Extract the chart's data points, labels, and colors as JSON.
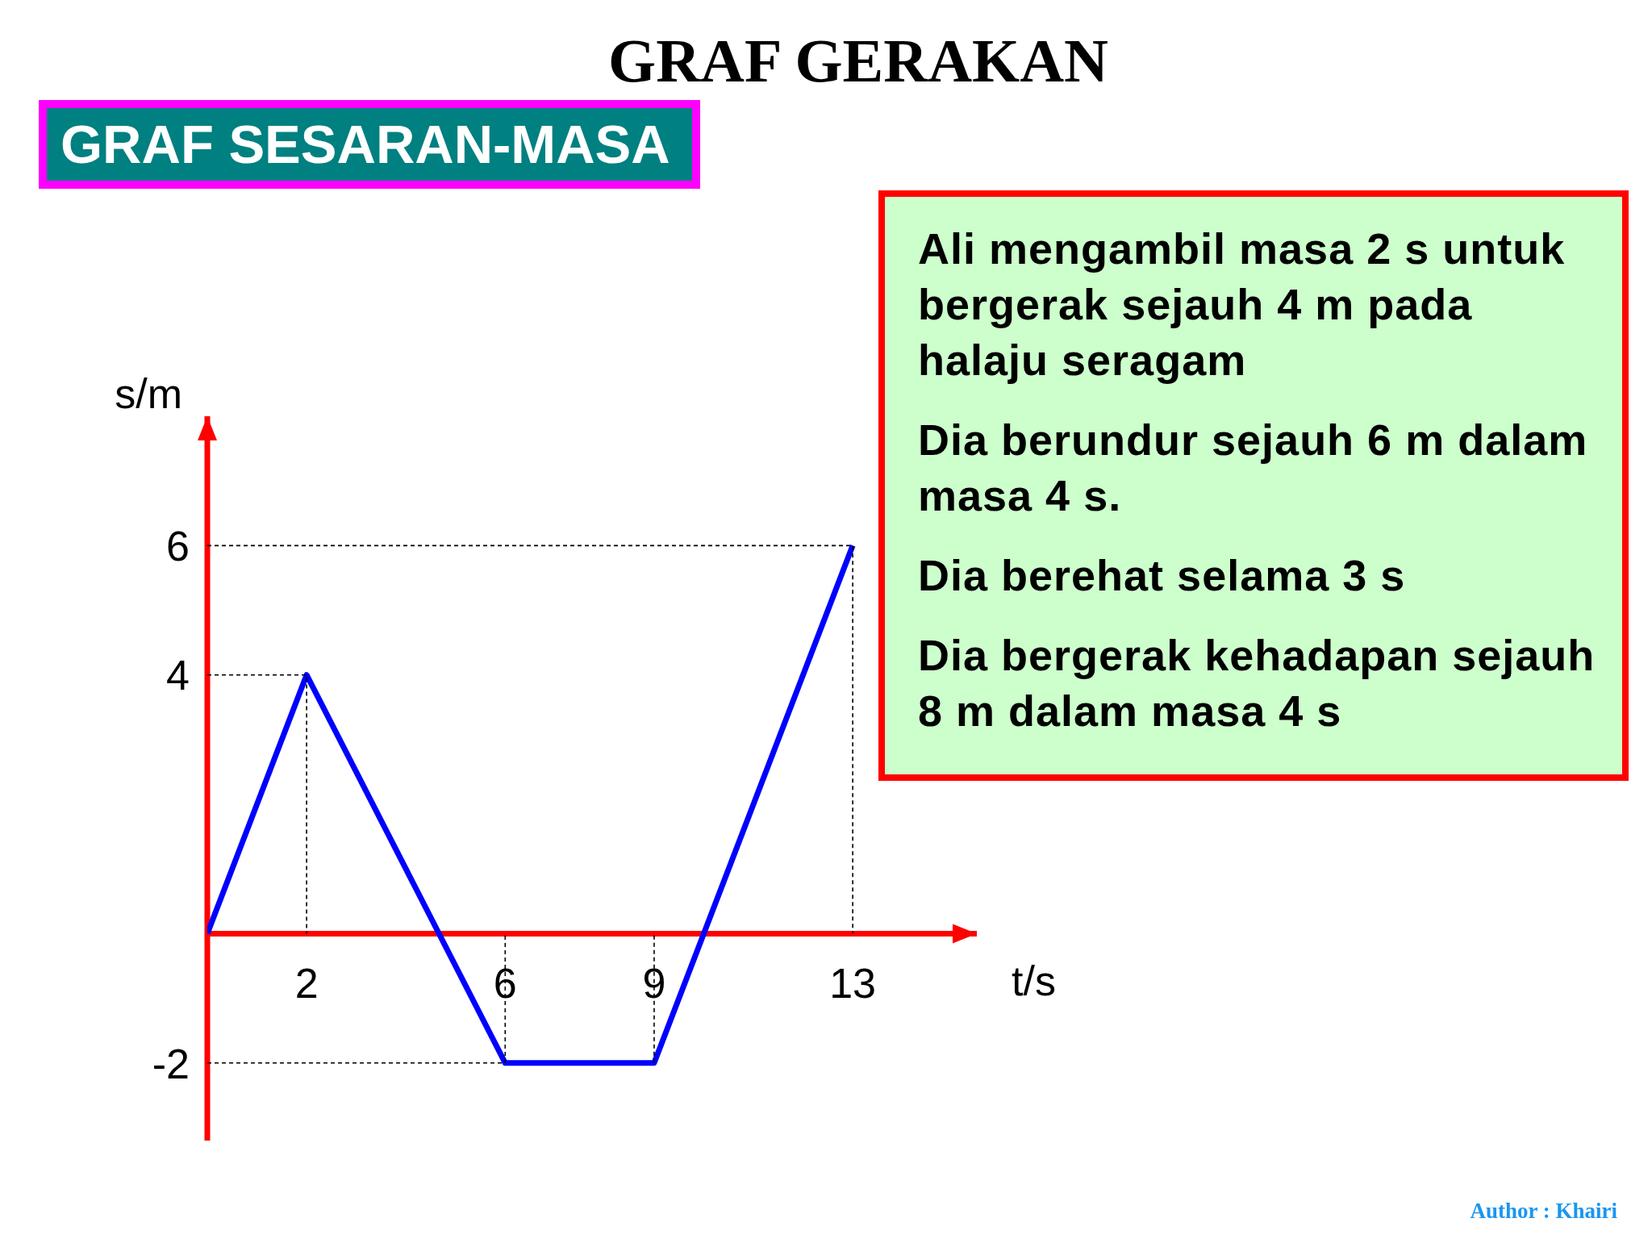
{
  "chart_data": {
    "type": "line",
    "title": "GRAF GERAKAN",
    "subtitle": "GRAF SESARAN-MASA",
    "xlabel": "t/s",
    "ylabel": "s/m",
    "x": [
      0,
      2,
      6,
      9,
      13
    ],
    "series": [
      {
        "color": "#0000ff",
        "values": [
          0,
          4,
          -2,
          -2,
          6
        ]
      },
      {
        "x": [
          0,
          2,
          2
        ],
        "values": [
          4,
          4,
          0
        ],
        "color": "#000000",
        "line_style": "dashed"
      },
      {
        "x": [
          0,
          13,
          13
        ],
        "values": [
          6,
          6,
          0
        ],
        "color": "#000000",
        "line_style": "dashed"
      },
      {
        "x": [
          0,
          6,
          6
        ],
        "values": [
          -2,
          -2,
          0
        ],
        "color": "#000000",
        "line_style": "dashed"
      },
      {
        "x": [
          9,
          9
        ],
        "values": [
          -2,
          0
        ],
        "color": "#000000",
        "line_style": "dashed"
      }
    ],
    "xlim": [
      0,
      15.5
    ],
    "xticks": [
      2,
      6,
      9,
      13
    ],
    "ylim": [
      -3.2,
      8
    ],
    "yticks": [
      -2,
      4,
      6
    ],
    "line_style": "solid",
    "annotations": [
      "Ali mengambil masa 2 s untuk bergerak sejauh 4 m pada halaju seragam",
      "Dia berundur sejauh 6 m dalam masa 4 s.",
      "Dia berehat selama 3 s",
      "Dia bergerak kehadapan sejauh 8 m dalam masa 4 s",
      "Author : Khairi"
    ]
  }
}
